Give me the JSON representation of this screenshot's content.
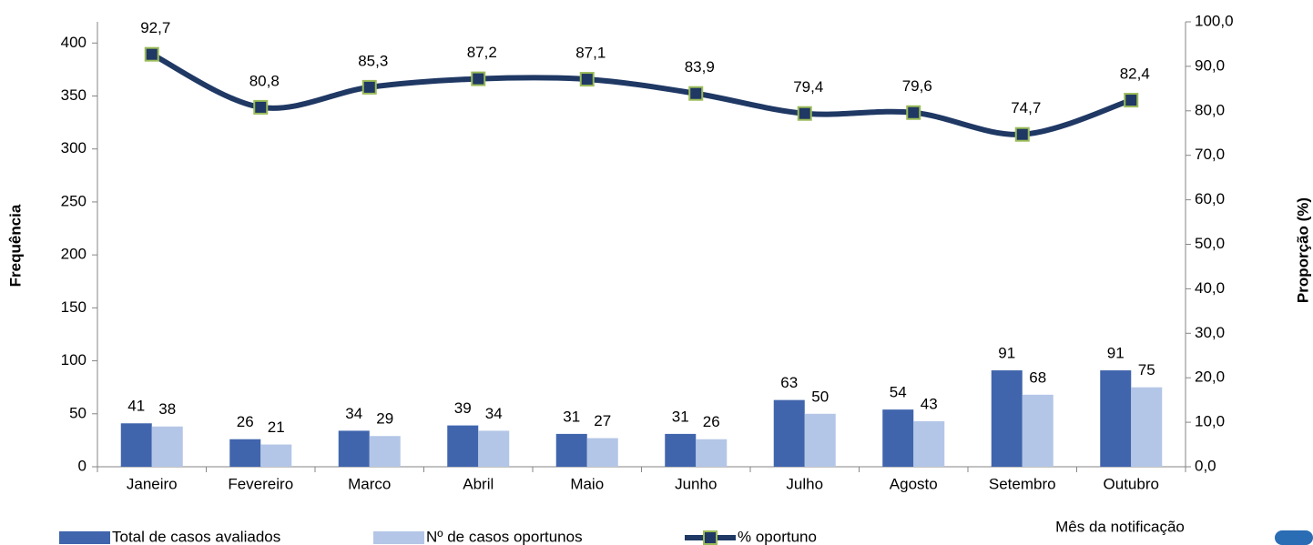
{
  "chart_data": {
    "type": "bar_line",
    "categories": [
      "Janeiro",
      "Fevereiro",
      "Marco",
      "Abril",
      "Maio",
      "Junho",
      "Julho",
      "Agosto",
      "Setembro",
      "Outubro"
    ],
    "series": [
      {
        "name": "Total de casos avaliados",
        "color": "#4065ad",
        "values": [
          41,
          26,
          34,
          39,
          31,
          31,
          63,
          54,
          91,
          91
        ]
      },
      {
        "name": "Nº de casos oportunos",
        "color": "#b4c6e7",
        "values": [
          38,
          21,
          29,
          34,
          27,
          26,
          50,
          43,
          68,
          75
        ]
      },
      {
        "name": "% oportuno",
        "color": "#1f3864",
        "marker_edge": "#9bbb59",
        "axis": "y2",
        "values": [
          92.7,
          80.8,
          85.3,
          87.2,
          87.1,
          83.9,
          79.4,
          79.6,
          74.7,
          82.4
        ],
        "value_labels": [
          "92,7",
          "80,8",
          "85,3",
          "87,2",
          "87,1",
          "83,9",
          "79,4",
          "79,6",
          "74,7",
          "82,4"
        ]
      }
    ],
    "ylabel": "Frequência",
    "y2label": "Proporção (%)",
    "xlabel": "Mês da notificação",
    "ylim": [
      0,
      420
    ],
    "yticks": [
      0,
      50,
      100,
      150,
      200,
      250,
      300,
      350,
      400
    ],
    "y2lim": [
      0,
      100
    ],
    "y2ticks": [
      {
        "value": 0,
        "label": "0,0"
      },
      {
        "value": 10,
        "label": "10,0"
      },
      {
        "value": 20,
        "label": "20,0"
      },
      {
        "value": 30,
        "label": "30,0"
      },
      {
        "value": 40,
        "label": "40,0"
      },
      {
        "value": 50,
        "label": "50,0"
      },
      {
        "value": 60,
        "label": "60,0"
      },
      {
        "value": 70,
        "label": "70,0"
      },
      {
        "value": 80,
        "label": "80,0"
      },
      {
        "value": 90,
        "label": "90,0"
      },
      {
        "value": 100,
        "label": "100,0"
      }
    ]
  }
}
